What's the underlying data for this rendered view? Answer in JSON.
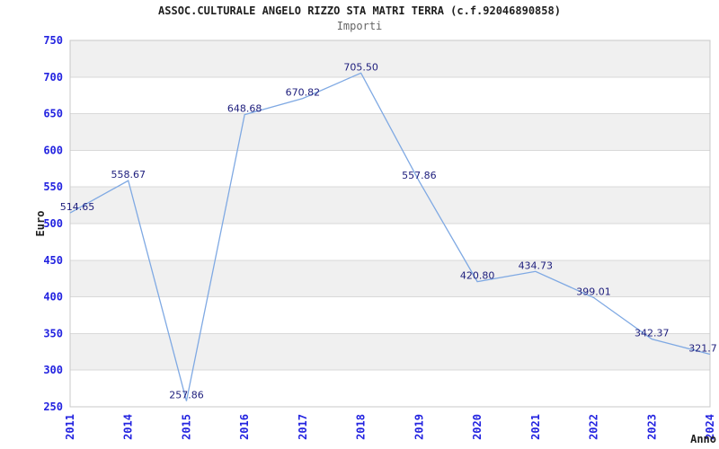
{
  "header": {
    "title": "ASSOC.CULTURALE ANGELO RIZZO STA MATRI TERRA (c.f.92046890858)",
    "subtitle": "Importi"
  },
  "chart_data": {
    "type": "line",
    "title": "ASSOC.CULTURALE ANGELO RIZZO STA MATRI TERRA (c.f.92046890858)",
    "subtitle": "Importi",
    "xlabel": "Anno",
    "ylabel": "Euro",
    "categories": [
      "2011",
      "2014",
      "2015",
      "2016",
      "2017",
      "2018",
      "2019",
      "2020",
      "2021",
      "2022",
      "2023",
      "2024"
    ],
    "values": [
      514.65,
      558.67,
      257.86,
      648.68,
      670.82,
      705.5,
      557.86,
      420.8,
      434.73,
      399.01,
      342.37,
      321.7
    ],
    "point_labels": [
      "514.65",
      "558.67",
      "257.86",
      "648.68",
      "670.82",
      "705.50",
      "557.86",
      "420.80",
      "434.73",
      "399.01",
      "342.37",
      "321.7"
    ],
    "ylim": [
      250,
      750
    ],
    "ytick_step": 50,
    "ytick_labels": [
      "750",
      "700",
      "650",
      "600",
      "550",
      "500",
      "450",
      "400",
      "350",
      "300",
      "250"
    ],
    "grid": true,
    "legend": null,
    "colors": {
      "line": "#7fa9e3",
      "tick_text": "#2323e0",
      "point_label_text": "#1d1d7c",
      "band_gray": "#f0f0f0",
      "band_white": "#ffffff",
      "gridline": "#d9d9d9",
      "plot_border": "#c8c8c8",
      "title_text": "#1f1f1f",
      "subtitle_text": "#666666",
      "axis_title_text": "#1f1f1f"
    }
  }
}
